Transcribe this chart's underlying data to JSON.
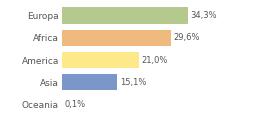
{
  "categories": [
    "Europa",
    "Africa",
    "America",
    "Asia",
    "Oceania"
  ],
  "values": [
    34.3,
    29.6,
    21.0,
    15.1,
    0.1
  ],
  "labels": [
    "34,3%",
    "29,6%",
    "21,0%",
    "15,1%",
    "0,1%"
  ],
  "bar_colors": [
    "#b5c98e",
    "#f0b97e",
    "#fde88a",
    "#7b96c8",
    "#d3d3d3"
  ],
  "background_color": "#ffffff",
  "xlim": [
    0,
    50
  ],
  "label_fontsize": 6,
  "category_fontsize": 6.5
}
